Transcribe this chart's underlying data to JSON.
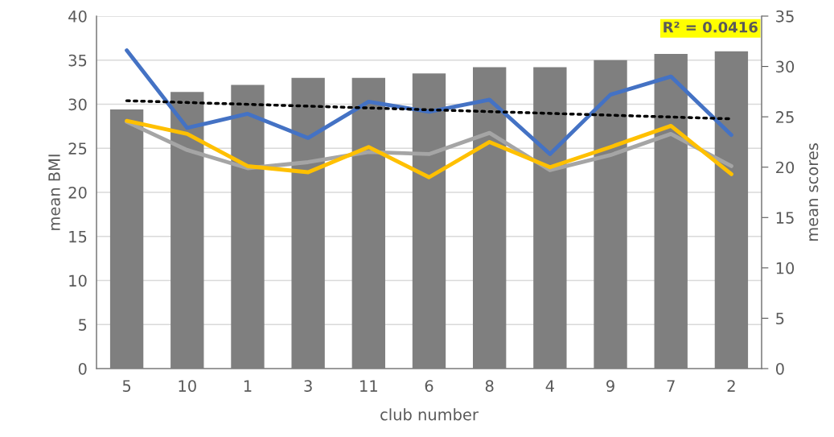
{
  "chart_data": {
    "type": "bar",
    "xlabel": "club number",
    "ylabel": "mean BMI",
    "y2label": "mean scores",
    "categories": [
      "5",
      "10",
      "1",
      "3",
      "11",
      "6",
      "8",
      "4",
      "9",
      "7",
      "2"
    ],
    "series": [
      {
        "color": "#7f7f7f",
        "values": [
          29.4,
          31.4,
          32.2,
          33.0,
          33.0,
          33.5,
          34.2,
          34.2,
          35.0,
          35.7,
          36.0
        ]
      },
      {
        "type": "line",
        "axis": "y2",
        "color": "#4472c4",
        "values": [
          31.6,
          23.9,
          25.3,
          22.9,
          26.5,
          25.5,
          26.7,
          21.3,
          27.2,
          29.0,
          23.2
        ]
      },
      {
        "type": "line",
        "axis": "y2",
        "color": "#a5a5a5",
        "values": [
          24.5,
          21.7,
          19.9,
          20.5,
          21.5,
          21.3,
          23.4,
          19.7,
          21.2,
          23.3,
          20.1
        ]
      },
      {
        "type": "line",
        "axis": "y2",
        "color": "#ffc000",
        "values": [
          24.6,
          23.3,
          20.1,
          19.5,
          22.0,
          19.0,
          22.5,
          20.0,
          22.0,
          24.1,
          19.3
        ]
      },
      {
        "type": "line",
        "axis": "y2",
        "color": "#000000",
        "line_style": "dotted",
        "x": [
          "5",
          "2"
        ],
        "values": [
          26.6,
          24.8
        ]
      }
    ],
    "ylim": [
      0,
      40
    ],
    "yticks": [
      0,
      5,
      10,
      15,
      20,
      25,
      30,
      35,
      40
    ],
    "y2lim": [
      0,
      35
    ],
    "y2ticks": [
      0,
      5,
      10,
      15,
      20,
      25,
      30,
      35
    ],
    "grid": "y",
    "annotations": [
      "R² = 0.0416"
    ]
  }
}
